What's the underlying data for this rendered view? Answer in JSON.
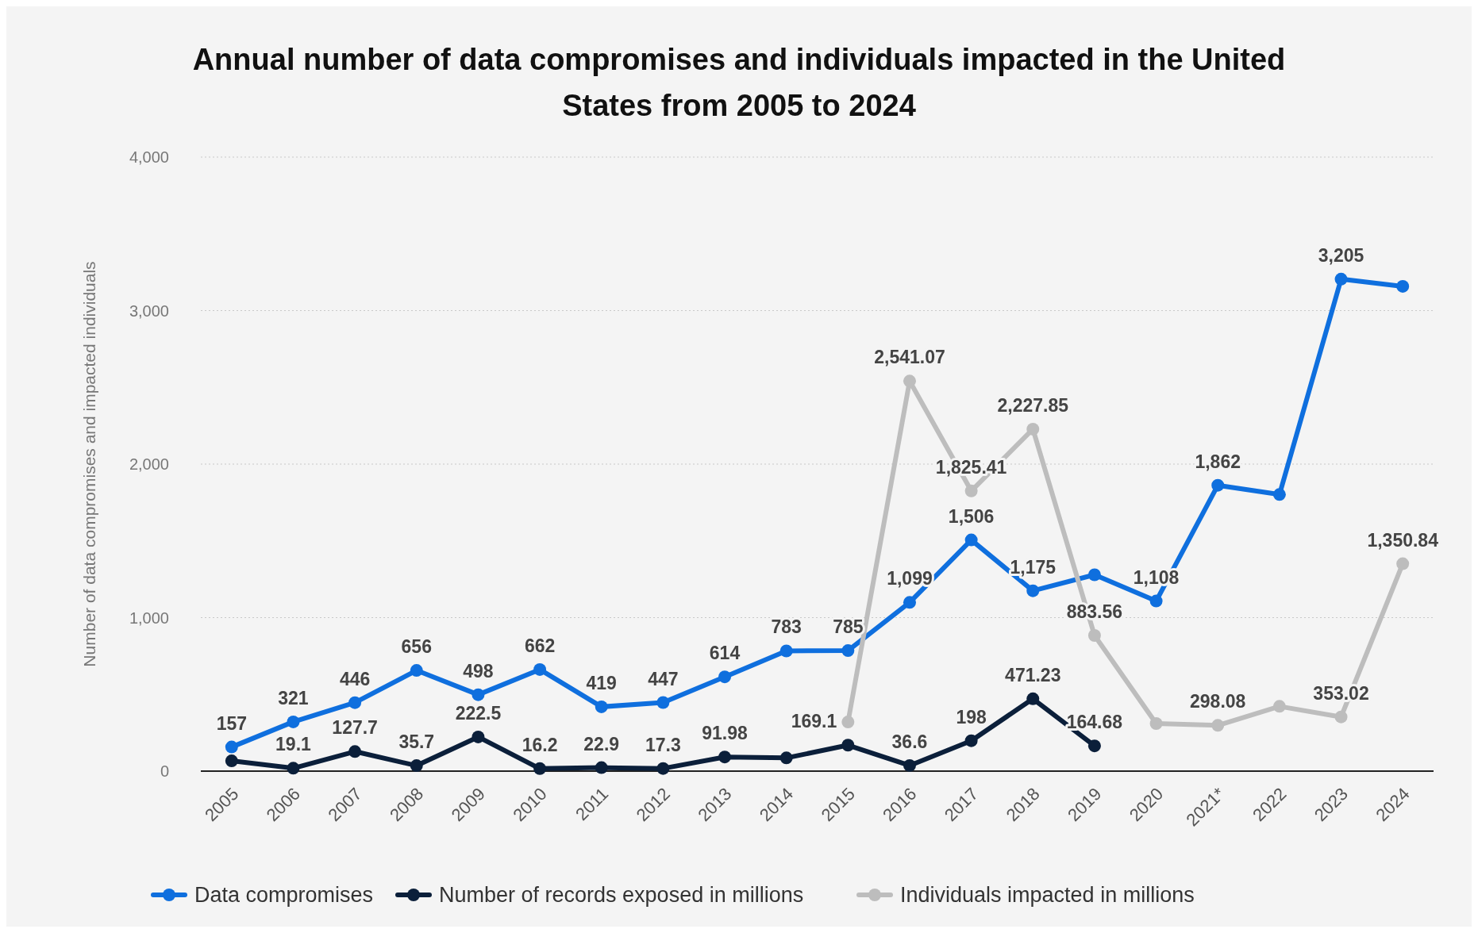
{
  "chart_data": {
    "type": "line",
    "title": "Annual number of data compromises and individuals impacted in the United States from 2005 to 2024",
    "ylabel": "Number of data compromises and impacted individuals",
    "categories": [
      "2005",
      "2006",
      "2007",
      "2008",
      "2009",
      "2010",
      "2011",
      "2012",
      "2013",
      "2014",
      "2015",
      "2016",
      "2017",
      "2018",
      "2019",
      "2020",
      "2021*",
      "2022",
      "2023",
      "2024"
    ],
    "series": [
      {
        "name": "Data compromises",
        "color": "#0f6fde",
        "values": [
          157,
          321,
          446,
          656,
          498,
          662,
          419,
          447,
          614,
          783,
          785,
          1099,
          1506,
          1175,
          1279,
          1108,
          1862,
          1802,
          3205,
          3158
        ],
        "value_labels": [
          "157",
          "321",
          "446",
          "656",
          "498",
          "662",
          "419",
          "447",
          "614",
          "783",
          "785",
          "1,099",
          "1,506",
          "1,175",
          null,
          "1,108",
          "1,862",
          null,
          "3,205",
          null
        ]
      },
      {
        "name": "Number of records exposed in millions",
        "color": "#0b1f3a",
        "values": [
          67,
          19.1,
          127.7,
          35.7,
          222.5,
          16.2,
          22.9,
          17.3,
          91.98,
          86,
          169.1,
          36.6,
          198,
          471.23,
          164.68,
          null,
          null,
          null,
          null,
          null
        ],
        "value_labels": [
          null,
          "19.1",
          "127.7",
          "35.7",
          "222.5",
          "16.2",
          "22.9",
          "17.3",
          "91.98",
          null,
          "169.1",
          "36.6",
          "198",
          "471.23",
          "164.68",
          null,
          null,
          null,
          null,
          null
        ]
      },
      {
        "name": "Individuals impacted in millions",
        "color": "#bdbdbd",
        "values": [
          null,
          null,
          null,
          null,
          null,
          null,
          null,
          null,
          null,
          null,
          320,
          2541.07,
          1825.41,
          2227.85,
          883.56,
          310,
          298.08,
          422,
          353.02,
          1350.84
        ],
        "value_labels": [
          null,
          null,
          null,
          null,
          null,
          null,
          null,
          null,
          null,
          null,
          null,
          "2,541.07",
          "1,825.41",
          "2,227.85",
          "883.56",
          null,
          "298.08",
          null,
          "353.02",
          "1,350.84"
        ]
      }
    ],
    "ylim": [
      0,
      4000
    ],
    "yticks": [
      {
        "value": 0,
        "label": "0"
      },
      {
        "value": 1000,
        "label": "1,000"
      },
      {
        "value": 2000,
        "label": "2,000"
      },
      {
        "value": 3000,
        "label": "3,000"
      },
      {
        "value": 4000,
        "label": "4,000"
      }
    ],
    "grid": "y",
    "legend": "bottom",
    "marker": "circle",
    "line_style": "solid"
  }
}
